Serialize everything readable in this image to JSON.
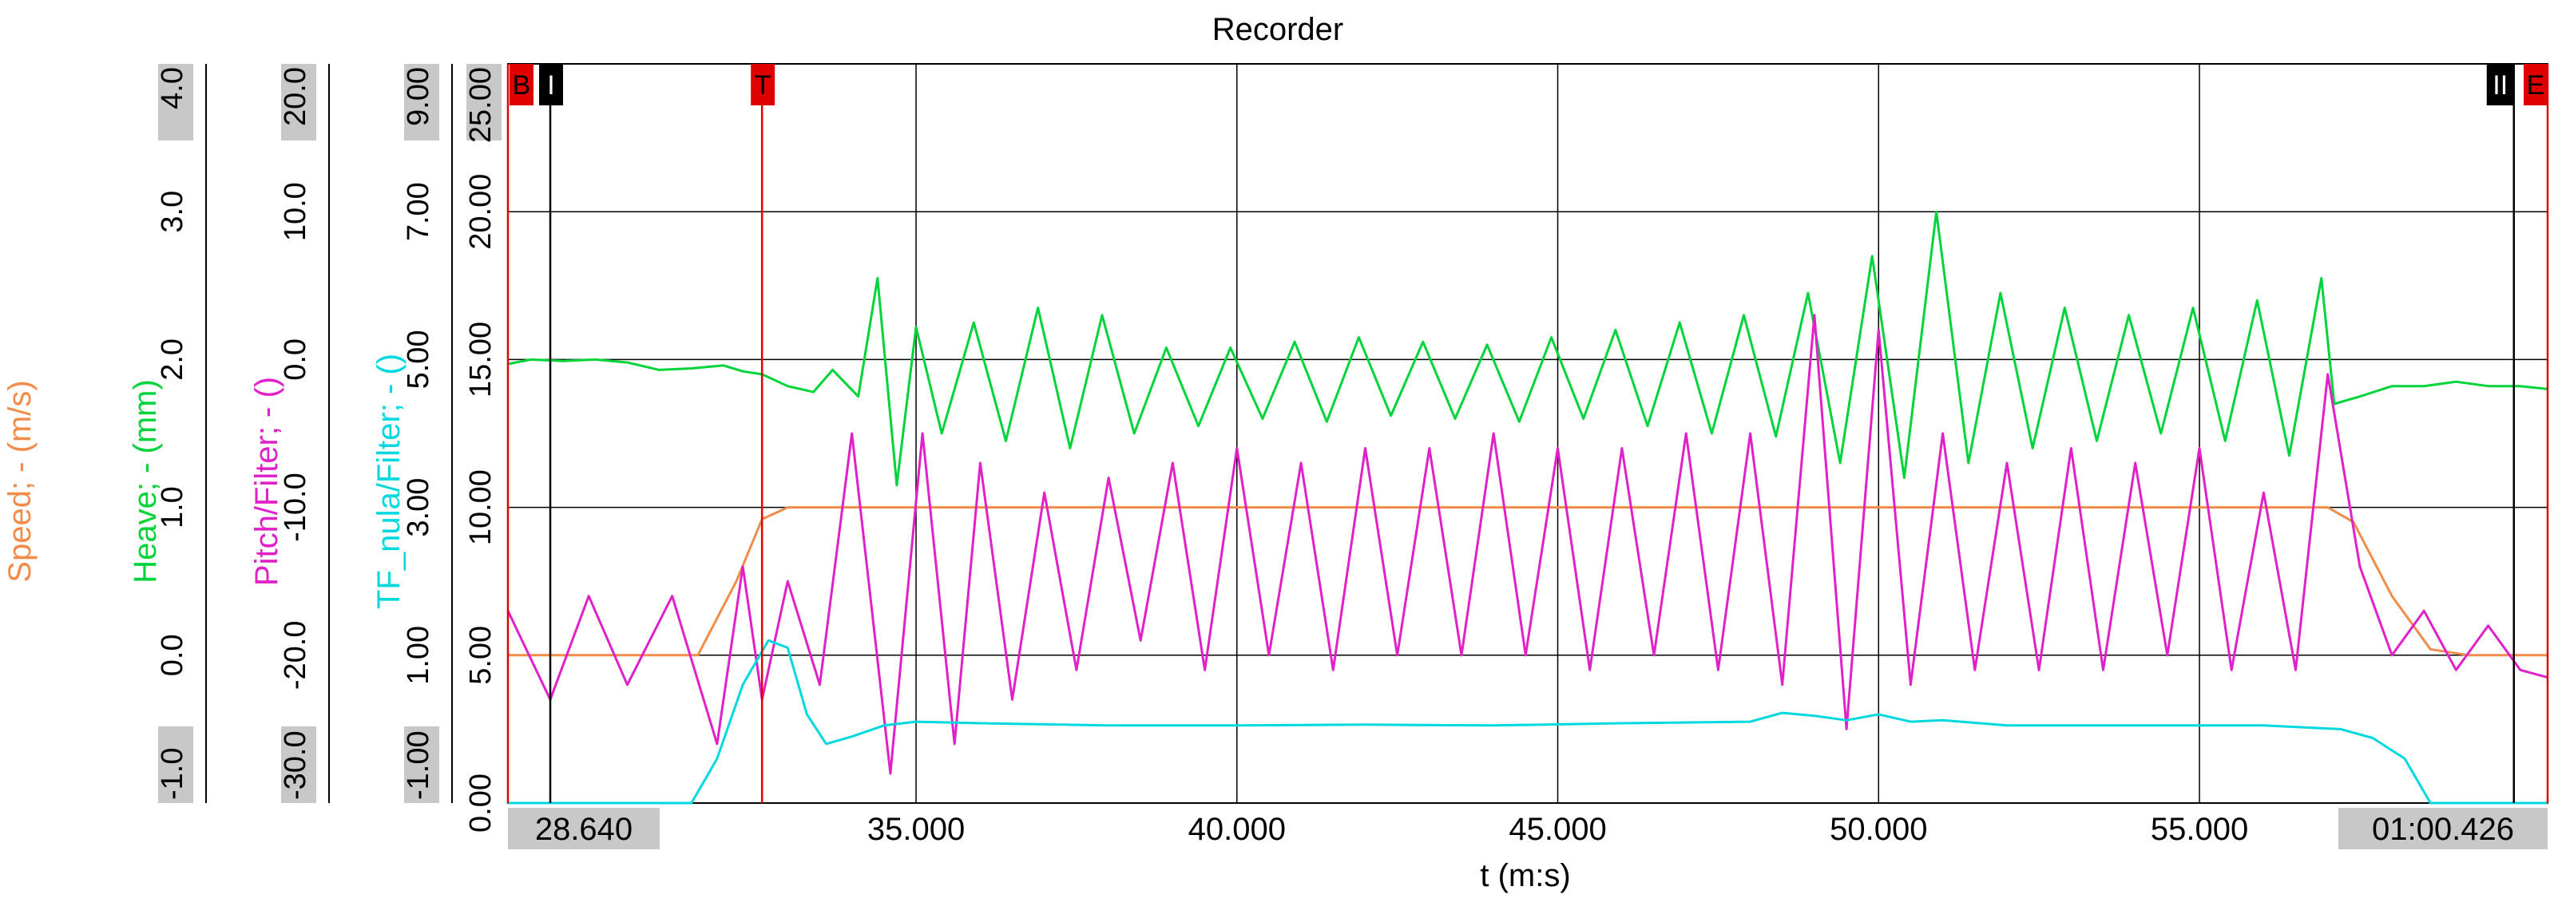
{
  "window": {
    "title": "Recorder"
  },
  "colors": {
    "speed": "#F28C4A",
    "heave": "#00D43A",
    "pitch": "#E020C8",
    "tf": "#00D8E0",
    "cursor_red": "#E00000",
    "cursor_black": "#000000",
    "grid": "#000000",
    "label_box": "#C8C8C8"
  },
  "chart_data": {
    "type": "line",
    "title": "Recorder",
    "xlabel": "t (m:s)",
    "x_range": [
      28.64,
      60.426
    ],
    "x_start_label": "28.640",
    "x_end_label": "01:00.426",
    "x_ticks": [
      {
        "value": 35,
        "label": "35.000"
      },
      {
        "value": 40,
        "label": "40.000"
      },
      {
        "value": 45,
        "label": "45.000"
      },
      {
        "value": 50,
        "label": "50.000"
      },
      {
        "value": 55,
        "label": "55.000"
      }
    ],
    "grid": true,
    "axes": [
      {
        "key": "tf",
        "label": "TF_nula/Filter; - ()",
        "range": [
          -1.0,
          9.0
        ],
        "ticks": [
          {
            "value": -1.0,
            "label": "-1.00",
            "boxed": true
          },
          {
            "value": 1.0,
            "label": "1.00"
          },
          {
            "value": 3.0,
            "label": "3.00"
          },
          {
            "value": 5.0,
            "label": "5.00"
          },
          {
            "value": 7.0,
            "label": "7.00"
          },
          {
            "value": 9.0,
            "label": "9.00",
            "boxed": true
          }
        ]
      },
      {
        "key": "pitch",
        "label": "Pitch/Filter; - ()",
        "range": [
          -30.0,
          20.0
        ],
        "ticks": [
          {
            "value": -30.0,
            "label": "-30.0",
            "boxed": true
          },
          {
            "value": -20.0,
            "label": "-20.0"
          },
          {
            "value": -10.0,
            "label": "-10.0"
          },
          {
            "value": 0.0,
            "label": "0.0"
          },
          {
            "value": 10.0,
            "label": "10.0"
          },
          {
            "value": 20.0,
            "label": "20.0",
            "boxed": true
          }
        ]
      },
      {
        "key": "heave",
        "label": "Heave; - (mm)",
        "range": [
          -1.0,
          4.0
        ],
        "ticks": [
          {
            "value": -1.0,
            "label": "-1.0",
            "boxed": true
          },
          {
            "value": 0.0,
            "label": "0.0"
          },
          {
            "value": 1.0,
            "label": "1.0"
          },
          {
            "value": 2.0,
            "label": "2.0"
          },
          {
            "value": 3.0,
            "label": "3.0"
          },
          {
            "value": 4.0,
            "label": "4.0",
            "boxed": true
          }
        ]
      },
      {
        "key": "speed",
        "label": "Speed; - (m/s)",
        "range": [
          0.0,
          25.0
        ],
        "ticks": [
          {
            "value": 0.0,
            "label": "0.00"
          },
          {
            "value": 5.0,
            "label": "5.00"
          },
          {
            "value": 10.0,
            "label": "10.00"
          },
          {
            "value": 15.0,
            "label": "15.00"
          },
          {
            "value": 20.0,
            "label": "20.00"
          },
          {
            "value": 25.0,
            "label": "25.00",
            "boxed": true
          }
        ]
      }
    ],
    "cursors": [
      {
        "name": "B",
        "x": 28.64,
        "color": "red"
      },
      {
        "name": "I",
        "x": 29.3,
        "color": "black"
      },
      {
        "name": "T",
        "x": 32.6,
        "color": "red"
      },
      {
        "name": "II",
        "x": 59.9,
        "color": "black"
      },
      {
        "name": "E",
        "x": 60.426,
        "color": "red"
      }
    ],
    "series": [
      {
        "key": "speed",
        "name": "Speed; - (m/s)",
        "axis": "speed",
        "x": [
          28.64,
          31.6,
          32.2,
          32.6,
          33.0,
          33.5,
          57.0,
          57.4,
          58.0,
          58.6,
          59.2,
          60.426
        ],
        "y": [
          5.0,
          5.0,
          7.5,
          9.6,
          10.0,
          10.0,
          10.0,
          9.5,
          7.0,
          5.2,
          5.0,
          5.0
        ]
      },
      {
        "key": "heave",
        "name": "Heave; - (mm)",
        "axis": "heave",
        "x": [
          28.64,
          29.0,
          29.5,
          30.0,
          30.5,
          31.0,
          31.5,
          32.0,
          32.3,
          32.6,
          33.0,
          33.4,
          33.7,
          34.1,
          34.4,
          34.7,
          35.0,
          35.4,
          35.9,
          36.4,
          36.9,
          37.4,
          37.9,
          38.4,
          38.9,
          39.4,
          39.9,
          40.4,
          40.9,
          41.4,
          41.9,
          42.4,
          42.9,
          43.4,
          43.9,
          44.4,
          44.9,
          45.4,
          45.9,
          46.4,
          46.9,
          47.4,
          47.9,
          48.4,
          48.9,
          49.4,
          49.9,
          50.4,
          50.9,
          51.4,
          51.9,
          52.4,
          52.9,
          53.4,
          53.9,
          54.4,
          54.9,
          55.4,
          55.9,
          56.4,
          56.9,
          57.1,
          57.5,
          58.0,
          58.5,
          59.0,
          59.5,
          60.0,
          60.426
        ],
        "y": [
          1.97,
          2.0,
          1.99,
          2.0,
          1.98,
          1.93,
          1.94,
          1.96,
          1.92,
          1.9,
          1.82,
          1.78,
          1.93,
          1.75,
          2.55,
          1.15,
          2.22,
          1.5,
          2.25,
          1.45,
          2.35,
          1.4,
          2.3,
          1.5,
          2.08,
          1.55,
          2.08,
          1.6,
          2.12,
          1.58,
          2.15,
          1.62,
          2.12,
          1.6,
          2.1,
          1.58,
          2.15,
          1.6,
          2.2,
          1.55,
          2.25,
          1.5,
          2.3,
          1.48,
          2.45,
          1.3,
          2.7,
          1.2,
          3.0,
          1.3,
          2.45,
          1.4,
          2.35,
          1.45,
          2.3,
          1.5,
          2.35,
          1.45,
          2.4,
          1.35,
          2.55,
          1.7,
          1.75,
          1.82,
          1.82,
          1.85,
          1.82,
          1.82,
          1.8
        ]
      },
      {
        "key": "pitch",
        "name": "Pitch/Filter; - ()",
        "axis": "pitch",
        "x": [
          28.64,
          29.3,
          29.9,
          30.5,
          31.2,
          31.9,
          32.3,
          32.6,
          33.0,
          33.5,
          34.0,
          34.6,
          35.1,
          35.6,
          36.0,
          36.5,
          37.0,
          37.5,
          38.0,
          38.5,
          39.0,
          39.5,
          40.0,
          40.5,
          41.0,
          41.5,
          42.0,
          42.5,
          43.0,
          43.5,
          44.0,
          44.5,
          45.0,
          45.5,
          46.0,
          46.5,
          47.0,
          47.5,
          48.0,
          48.5,
          49.0,
          49.5,
          50.0,
          50.5,
          51.0,
          51.5,
          52.0,
          52.5,
          53.0,
          53.5,
          54.0,
          54.5,
          55.0,
          55.5,
          56.0,
          56.5,
          57.0,
          57.5,
          58.0,
          58.5,
          59.0,
          59.5,
          60.0,
          60.426
        ],
        "y": [
          -17.0,
          -23.0,
          -16.0,
          -22.0,
          -16.0,
          -26.0,
          -14.0,
          -23.0,
          -15.0,
          -22.0,
          -5.0,
          -28.0,
          -5.0,
          -26.0,
          -7.0,
          -23.0,
          -9.0,
          -21.0,
          -8.0,
          -19.0,
          -7.0,
          -21.0,
          -6.0,
          -20.0,
          -7.0,
          -21.0,
          -6.0,
          -20.0,
          -6.0,
          -20.0,
          -5.0,
          -20.0,
          -6.0,
          -21.0,
          -6.0,
          -20.0,
          -5.0,
          -21.0,
          -5.0,
          -22.0,
          3.0,
          -25.0,
          2.0,
          -22.0,
          -5.0,
          -21.0,
          -7.0,
          -21.0,
          -6.0,
          -21.0,
          -7.0,
          -20.0,
          -6.0,
          -21.0,
          -9.0,
          -21.0,
          -1.0,
          -14.0,
          -20.0,
          -17.0,
          -21.0,
          -18.0,
          -21.0,
          -21.5
        ]
      },
      {
        "key": "tf",
        "name": "TF_nula/Filter; - ()",
        "axis": "tf",
        "x": [
          28.64,
          31.5,
          31.9,
          32.3,
          32.7,
          33.0,
          33.3,
          33.6,
          34.0,
          34.5,
          35.0,
          36.0,
          38.0,
          40.0,
          42.0,
          44.0,
          46.0,
          48.0,
          48.5,
          49.0,
          49.5,
          50.0,
          50.5,
          51.0,
          52.0,
          54.0,
          56.0,
          57.2,
          57.7,
          58.2,
          58.6,
          60.426
        ],
        "y": [
          -1.0,
          -1.0,
          -0.4,
          0.6,
          1.2,
          1.1,
          0.2,
          -0.2,
          -0.1,
          0.05,
          0.1,
          0.08,
          0.05,
          0.05,
          0.06,
          0.05,
          0.08,
          0.1,
          0.22,
          0.18,
          0.12,
          0.2,
          0.1,
          0.12,
          0.05,
          0.05,
          0.05,
          0.0,
          -0.12,
          -0.4,
          -1.0,
          -1.0
        ]
      }
    ]
  }
}
